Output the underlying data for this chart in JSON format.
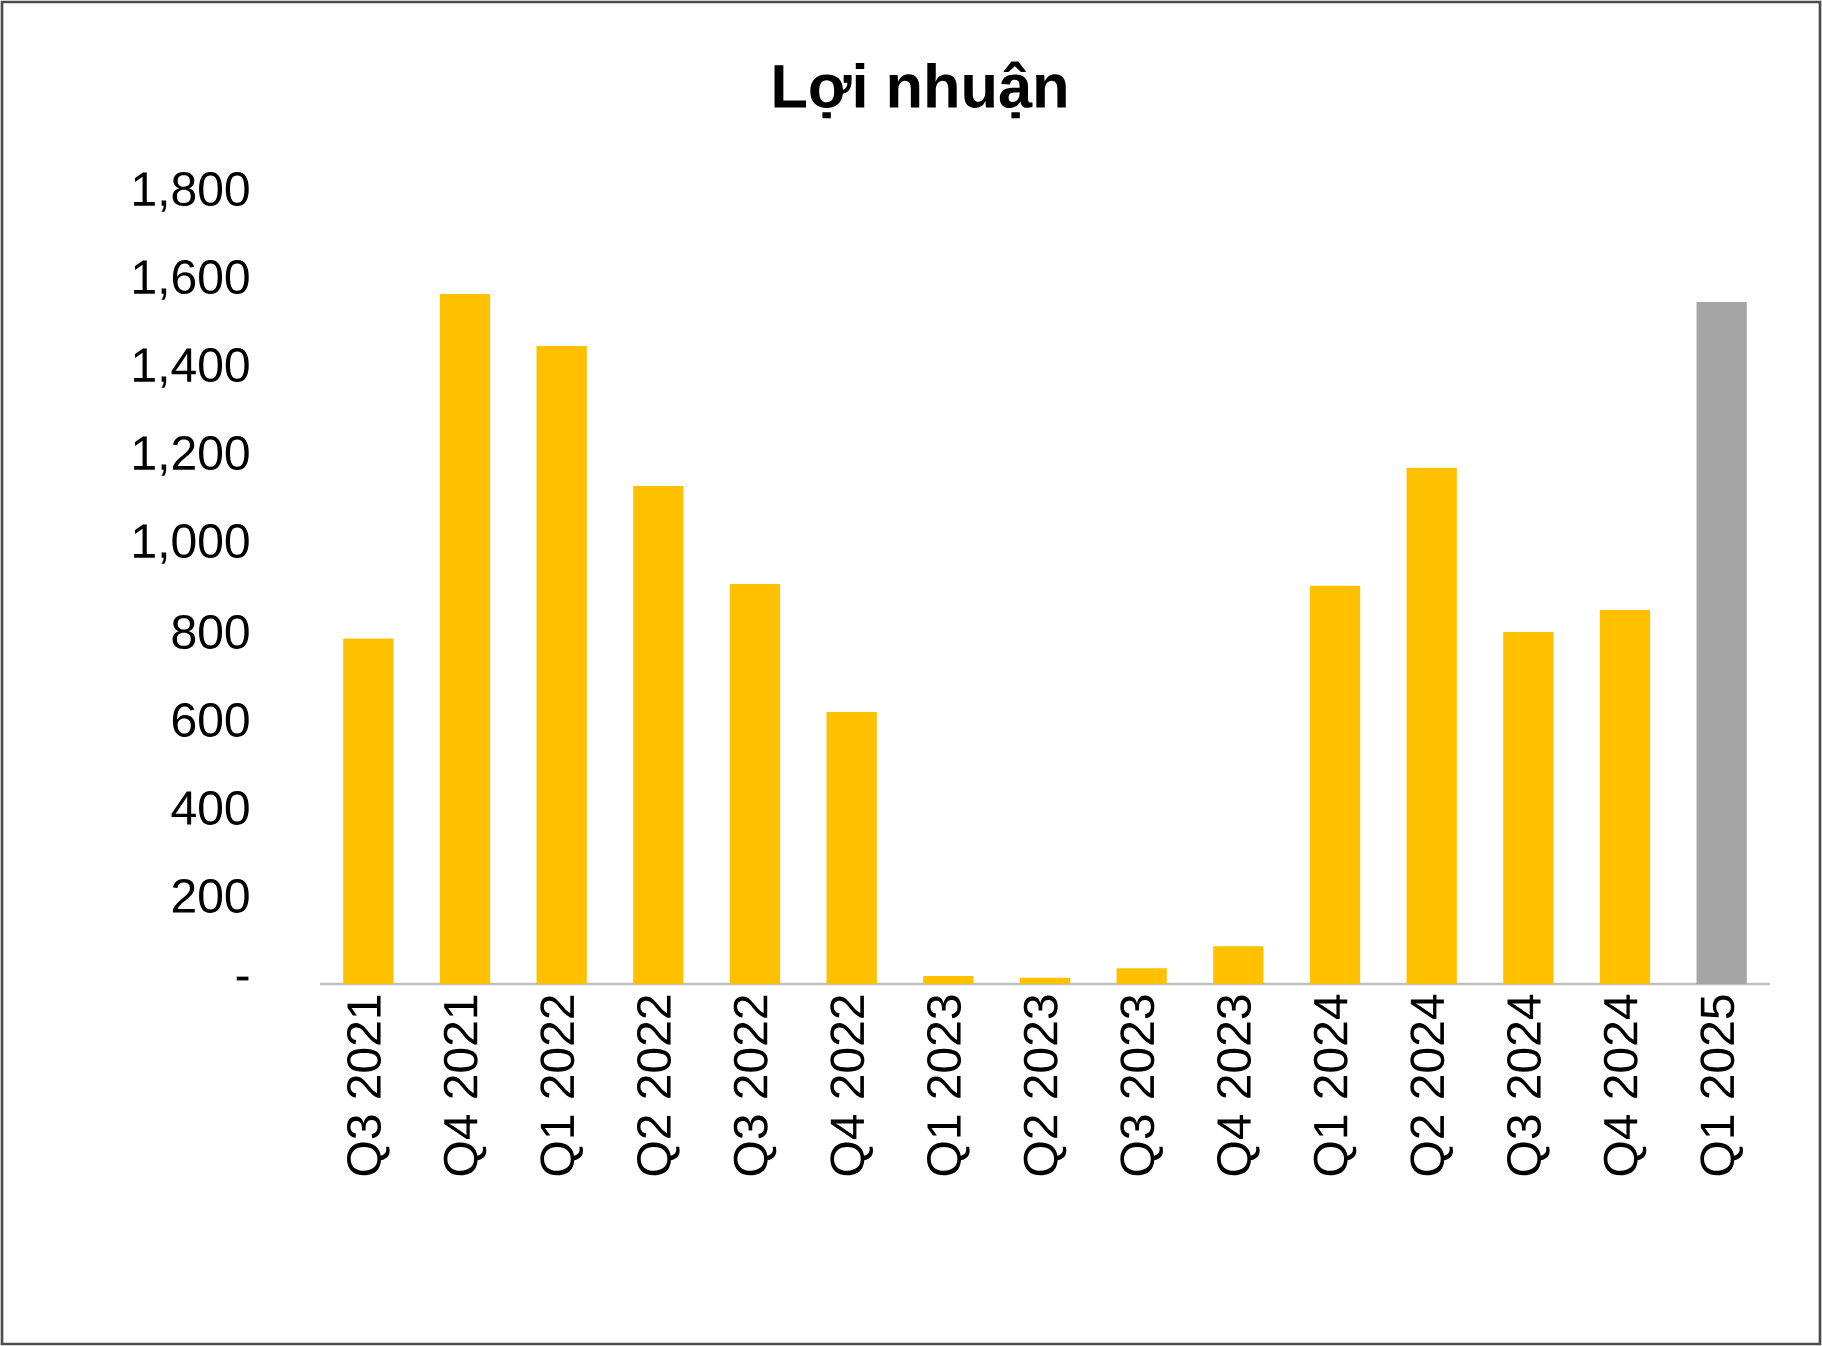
{
  "chart_data": {
    "type": "bar",
    "title": "Lợi nhuận",
    "categories": [
      "Q3 2021",
      "Q4 2021",
      "Q1 2022",
      "Q2 2022",
      "Q3 2022",
      "Q4 2022",
      "Q1 2023",
      "Q2 2023",
      "Q3 2023",
      "Q4 2023",
      "Q1 2024",
      "Q2 2024",
      "Q3 2024",
      "Q4 2024",
      "Q1 2025"
    ],
    "values": [
      785,
      1568,
      1450,
      1132,
      909,
      618,
      18,
      14,
      36,
      86,
      905,
      1173,
      800,
      850,
      1550
    ],
    "colors": [
      "#ffc000",
      "#ffc000",
      "#ffc000",
      "#ffc000",
      "#ffc000",
      "#ffc000",
      "#ffc000",
      "#ffc000",
      "#ffc000",
      "#ffc000",
      "#ffc000",
      "#ffc000",
      "#ffc000",
      "#ffc000",
      "#a5a5a5"
    ],
    "ylim": [
      0,
      1800
    ],
    "yticks": [
      {
        "value": 0,
        "label": "-"
      },
      200,
      400,
      600,
      800,
      {
        "value": 1000,
        "label": "1,000"
      },
      {
        "value": 1200,
        "label": "1,200"
      },
      {
        "value": 1400,
        "label": "1,400"
      },
      {
        "value": 1600,
        "label": "1,600"
      },
      {
        "value": 1800,
        "label": "1,800"
      }
    ],
    "grid": false
  }
}
